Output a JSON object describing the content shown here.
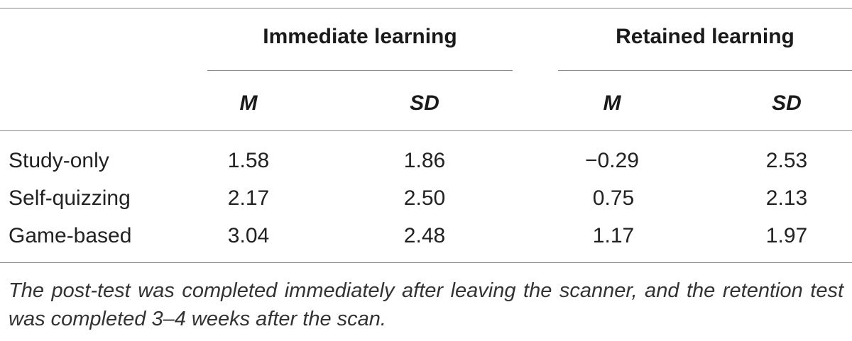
{
  "table": {
    "groups": [
      {
        "label": "Immediate learning"
      },
      {
        "label": "Retained learning"
      }
    ],
    "subheaders": [
      "M",
      "SD",
      "M",
      "SD"
    ],
    "rows": [
      {
        "label": "Study-only",
        "values": [
          "1.58",
          "1.86",
          "−0.29",
          "2.53"
        ]
      },
      {
        "label": "Self-quizzing",
        "values": [
          "2.17",
          "2.50",
          "0.75",
          "2.13"
        ]
      },
      {
        "label": "Game-based",
        "values": [
          "3.04",
          "2.48",
          "1.17",
          "1.97"
        ]
      }
    ],
    "note": "The post-test was completed immediately after leaving the scanner, and the retention test was completed 3–4 weeks after the scan."
  }
}
